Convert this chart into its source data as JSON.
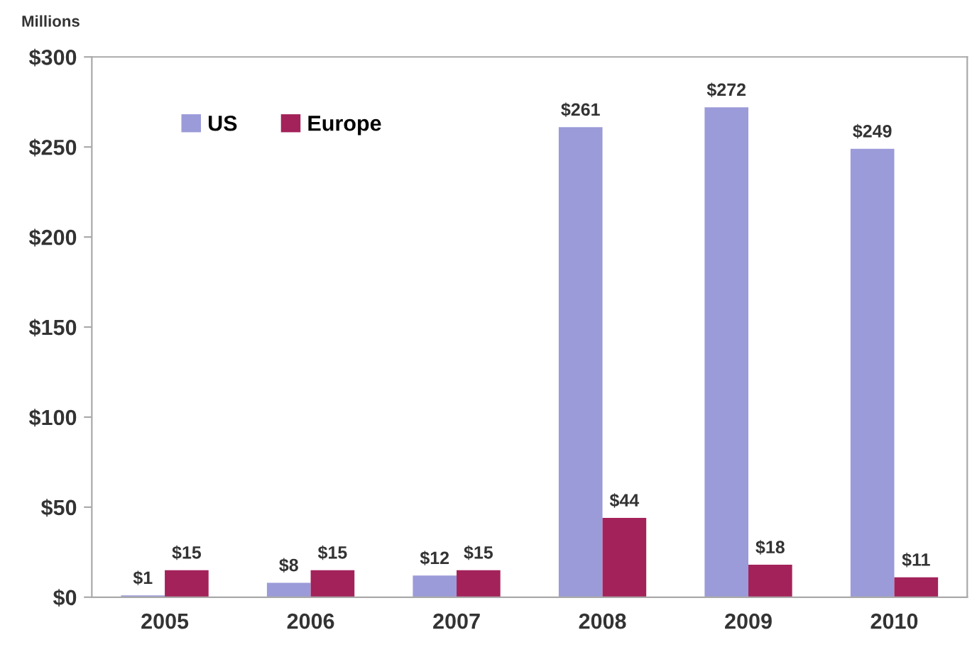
{
  "chart_data": {
    "type": "bar",
    "ylabel": "Millions",
    "categories": [
      "2005",
      "2006",
      "2007",
      "2008",
      "2009",
      "2010"
    ],
    "series": [
      {
        "name": "US",
        "color": "#9b9bd9",
        "values": [
          1,
          8,
          12,
          261,
          272,
          249
        ],
        "value_labels": [
          "$1",
          "$8",
          "$12",
          "$261",
          "$272",
          "$249"
        ]
      },
      {
        "name": "Europe",
        "color": "#a3225a",
        "values": [
          15,
          15,
          15,
          44,
          18,
          11
        ],
        "value_labels": [
          "$15",
          "$15",
          "$15",
          "$44",
          "$18",
          "$11"
        ]
      }
    ],
    "ylim": [
      0,
      300
    ],
    "yticks": [
      {
        "value": 0,
        "label": "$0"
      },
      {
        "value": 50,
        "label": "$50"
      },
      {
        "value": 100,
        "label": "$100"
      },
      {
        "value": 150,
        "label": "$150"
      },
      {
        "value": 200,
        "label": "$200"
      },
      {
        "value": 250,
        "label": "$250"
      },
      {
        "value": 300,
        "label": "$300"
      }
    ],
    "grid": false,
    "legend": "top left"
  }
}
